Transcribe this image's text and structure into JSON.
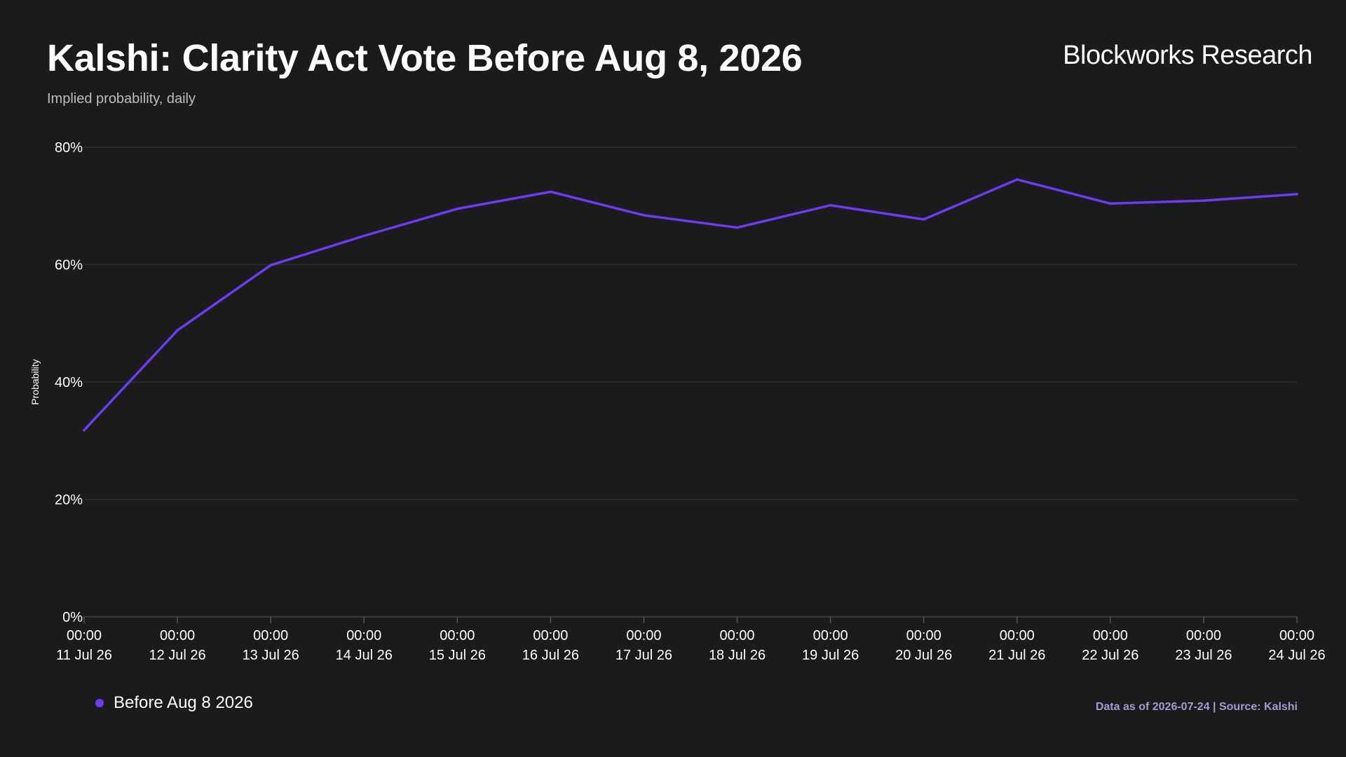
{
  "header": {
    "title": "Kalshi: Clarity Act Vote Before Aug 8, 2026",
    "subtitle": "Implied probability, daily",
    "brand": "Blockworks Research"
  },
  "footer": {
    "source": "Data as of 2026-07-24 | Source: Kalshi"
  },
  "colors": {
    "background": "#1b1b1c",
    "line": "#6a3cf5",
    "grid": "#2e2e30",
    "source_text": "#a49ad4"
  },
  "chart_data": {
    "type": "line",
    "title": "Kalshi: Clarity Act Vote Before Aug 8, 2026",
    "subtitle": "Implied probability, daily",
    "xlabel": "",
    "ylabel": "Probability",
    "ylim": [
      0,
      80
    ],
    "y_ticks": [
      "0%",
      "20%",
      "40%",
      "60%",
      "80%"
    ],
    "y_tick_values": [
      0,
      20,
      40,
      60,
      80
    ],
    "x_tick_labels": [
      [
        "00:00",
        "11 Jul 26"
      ],
      [
        "00:00",
        "12 Jul 26"
      ],
      [
        "00:00",
        "13 Jul 26"
      ],
      [
        "00:00",
        "14 Jul 26"
      ],
      [
        "00:00",
        "15 Jul 26"
      ],
      [
        "00:00",
        "16 Jul 26"
      ],
      [
        "00:00",
        "17 Jul 26"
      ],
      [
        "00:00",
        "18 Jul 26"
      ],
      [
        "00:00",
        "19 Jul 26"
      ],
      [
        "00:00",
        "20 Jul 26"
      ],
      [
        "00:00",
        "21 Jul 26"
      ],
      [
        "00:00",
        "22 Jul 26"
      ],
      [
        "00:00",
        "23 Jul 26"
      ],
      [
        "00:00",
        "24 Jul 26"
      ]
    ],
    "x": [
      "2026-07-11",
      "2026-07-12",
      "2026-07-13",
      "2026-07-14",
      "2026-07-15",
      "2026-07-16",
      "2026-07-17",
      "2026-07-18",
      "2026-07-19",
      "2026-07-20",
      "2026-07-21",
      "2026-07-22",
      "2026-07-23",
      "2026-07-24"
    ],
    "series": [
      {
        "name": "Before Aug 8 2026",
        "color": "#6a3cf5",
        "values": [
          31.8,
          48.8,
          59.9,
          64.9,
          69.5,
          72.4,
          68.4,
          66.3,
          70.1,
          67.7,
          74.5,
          70.4,
          70.9,
          72.0
        ]
      }
    ],
    "grid": true,
    "legend_position": "bottom-left"
  }
}
